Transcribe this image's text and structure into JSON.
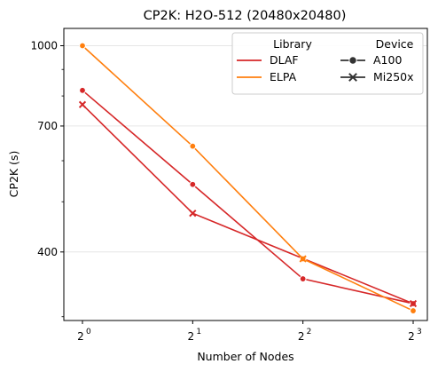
{
  "chart_data": {
    "type": "line",
    "title": "CP2K: H2O-512 (20480x20480)",
    "xlabel": "Number of Nodes",
    "ylabel": "CP2K (s)",
    "x": [
      1,
      2,
      4,
      8
    ],
    "x_tick_base": "2",
    "x_tick_exponents": [
      "0",
      "1",
      "2",
      "3"
    ],
    "x_scale": "log2",
    "y_scale": "log",
    "ylim": [
      295,
      1080
    ],
    "y_major_ticks": [
      400,
      700,
      1000
    ],
    "y_major_tick_labels": [
      "400",
      "700",
      "1000"
    ],
    "y_minor_ticks": [
      300,
      500,
      600,
      800,
      900
    ],
    "grid": "horizontal major",
    "legend_position": "top-right",
    "legend_titles": {
      "library": "Library",
      "device": "Device"
    },
    "libraries": [
      {
        "name": "DLAF",
        "color": "#d62728"
      },
      {
        "name": "ELPA",
        "color": "#ff7f0e"
      }
    ],
    "devices": [
      {
        "name": "A100",
        "marker": "circle"
      },
      {
        "name": "Mi250x",
        "marker": "x"
      }
    ],
    "series": [
      {
        "library": "DLAF",
        "device": "A100",
        "values": [
          820,
          540,
          355,
          318
        ]
      },
      {
        "library": "DLAF",
        "device": "Mi250x",
        "values": [
          770,
          475,
          null,
          318
        ]
      },
      {
        "library": "ELPA",
        "device": "A100",
        "values": [
          1000,
          640,
          388,
          308
        ]
      },
      {
        "library": "ELPA",
        "device": "Mi250x",
        "values": [
          null,
          null,
          388,
          null
        ]
      }
    ]
  }
}
